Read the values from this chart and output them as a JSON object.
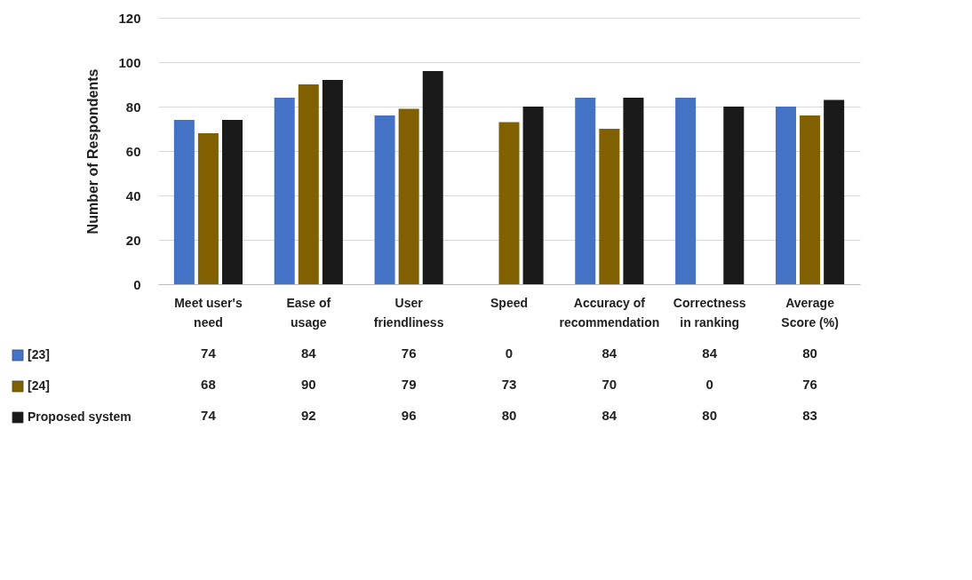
{
  "chart_data": {
    "type": "bar",
    "ylabel": "Number of Respondents",
    "categories": [
      "Meet user's need",
      "Ease of usage",
      "User friendliness",
      "Speed",
      "Accuracy of recommendation",
      "Correctness in ranking",
      "Average Score (%)"
    ],
    "series": [
      {
        "name": "[23]",
        "color": "#4472c4",
        "values": [
          74,
          84,
          76,
          0,
          84,
          84,
          80
        ]
      },
      {
        "name": "[24]",
        "color": "#806000",
        "values": [
          68,
          90,
          79,
          73,
          70,
          0,
          76
        ]
      },
      {
        "name": "Proposed system",
        "color": "#1a1a1a",
        "values": [
          74,
          92,
          96,
          80,
          84,
          80,
          83
        ]
      }
    ],
    "ylim": [
      0,
      120
    ],
    "yticks": [
      0,
      20,
      40,
      60,
      80,
      100,
      120
    ],
    "grid": "y",
    "data_labels": true,
    "legend": "bottom left"
  }
}
